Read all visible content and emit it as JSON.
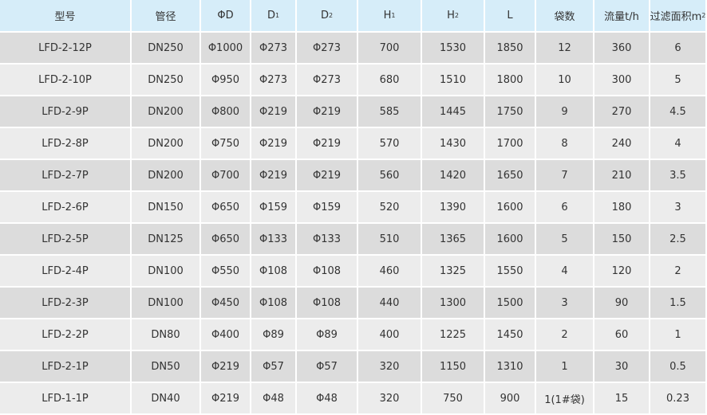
{
  "table": {
    "header": [
      {
        "text": "型号"
      },
      {
        "text": "管径"
      },
      {
        "text": "ΦD"
      },
      {
        "text": "D",
        "sub": "1"
      },
      {
        "text": "D",
        "sub": "2"
      },
      {
        "text": "H",
        "sub": "1"
      },
      {
        "text": "H",
        "sub": "2"
      },
      {
        "text": "L"
      },
      {
        "text": "袋数"
      },
      {
        "text": "流量t/h"
      },
      {
        "text": "过滤面积m",
        "sup": "2"
      }
    ],
    "rows": [
      [
        "LFD-2-12P",
        "DN250",
        "Φ1000",
        "Φ273",
        "Φ273",
        "700",
        "1530",
        "1850",
        "12",
        "360",
        "6"
      ],
      [
        "LFD-2-10P",
        "DN250",
        "Φ950",
        "Φ273",
        "Φ273",
        "680",
        "1510",
        "1800",
        "10",
        "300",
        "5"
      ],
      [
        "LFD-2-9P",
        "DN200",
        "Φ800",
        "Φ219",
        "Φ219",
        "585",
        "1445",
        "1750",
        "9",
        "270",
        "4.5"
      ],
      [
        "LFD-2-8P",
        "DN200",
        "Φ750",
        "Φ219",
        "Φ219",
        "570",
        "1430",
        "1700",
        "8",
        "240",
        "4"
      ],
      [
        "LFD-2-7P",
        "DN200",
        "Φ700",
        "Φ219",
        "Φ219",
        "560",
        "1420",
        "1650",
        "7",
        "210",
        "3.5"
      ],
      [
        "LFD-2-6P",
        "DN150",
        "Φ650",
        "Φ159",
        "Φ159",
        "520",
        "1390",
        "1600",
        "6",
        "180",
        "3"
      ],
      [
        "LFD-2-5P",
        "DN125",
        "Φ650",
        "Φ133",
        "Φ133",
        "510",
        "1365",
        "1600",
        "5",
        "150",
        "2.5"
      ],
      [
        "LFD-2-4P",
        "DN100",
        "Φ550",
        "Φ108",
        "Φ108",
        "460",
        "1325",
        "1550",
        "4",
        "120",
        "2"
      ],
      [
        "LFD-2-3P",
        "DN100",
        "Φ450",
        "Φ108",
        "Φ108",
        "440",
        "1300",
        "1500",
        "3",
        "90",
        "1.5"
      ],
      [
        "LFD-2-2P",
        "DN80",
        "Φ400",
        "Φ89",
        "Φ89",
        "400",
        "1225",
        "1450",
        "2",
        "60",
        "1"
      ],
      [
        "LFD-2-1P",
        "DN50",
        "Φ219",
        "Φ57",
        "Φ57",
        "320",
        "1150",
        "1310",
        "1",
        "30",
        "0.5"
      ],
      [
        "LFD-1-1P",
        "DN40",
        "Φ219",
        "Φ48",
        "Φ48",
        "320",
        "750",
        "900",
        "1(1#袋)",
        "15",
        "0.23"
      ]
    ]
  }
}
